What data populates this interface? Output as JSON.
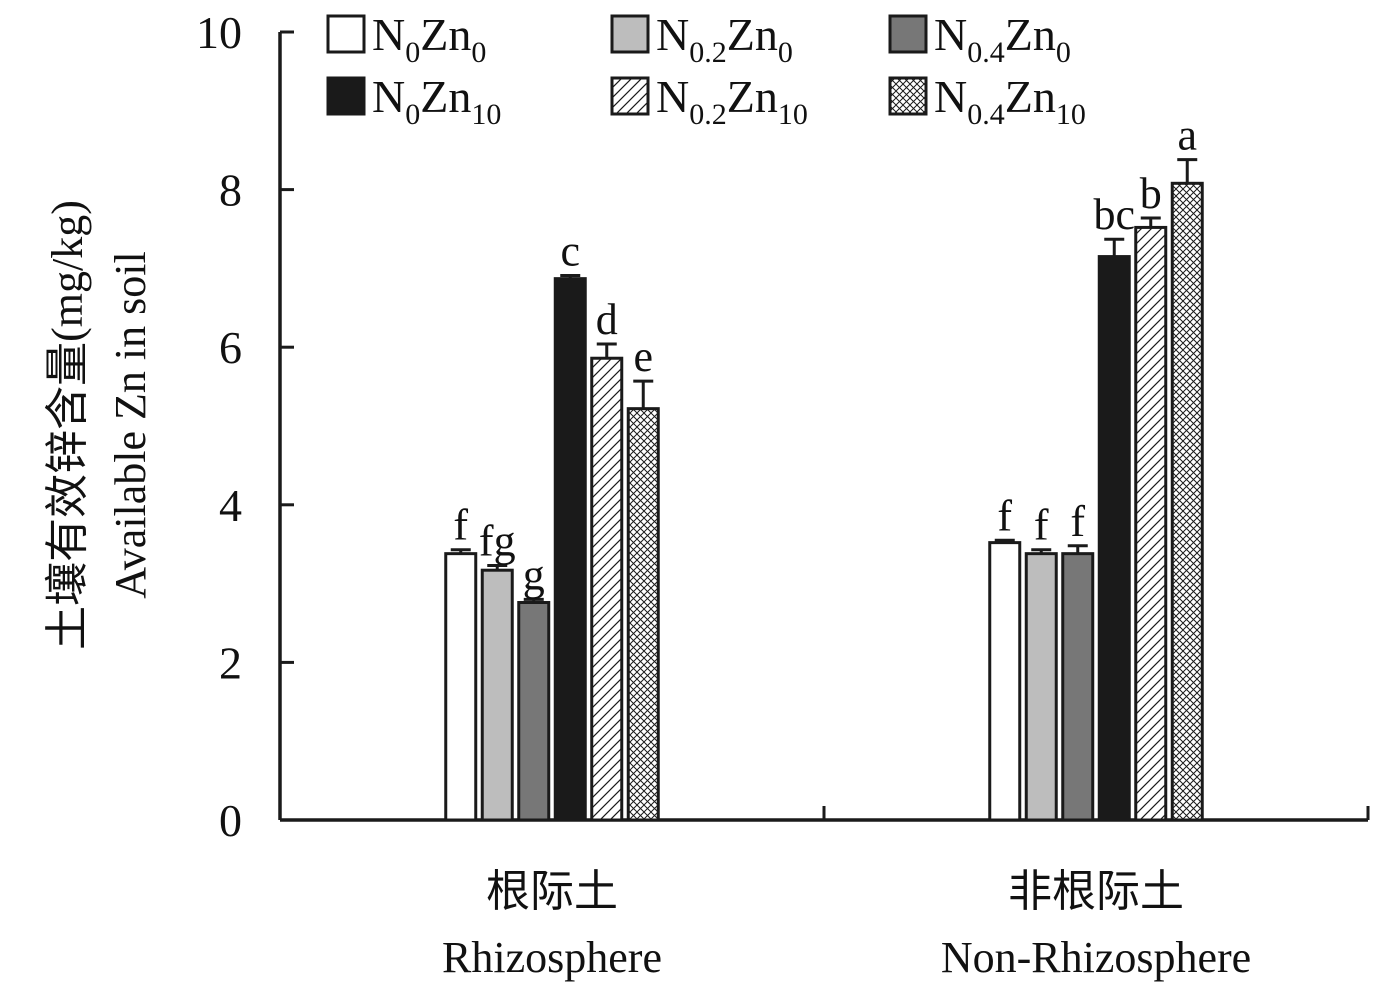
{
  "chart_data": {
    "type": "bar",
    "ylabel_cn": "土壤有效锌含量(mg/kg)",
    "ylabel_en": "Available Zn in soil",
    "ylim": [
      0,
      10
    ],
    "yticks": [
      0,
      2,
      4,
      6,
      8,
      10
    ],
    "ytick_labels": [
      "0",
      "2",
      "4",
      "6",
      "8",
      "10"
    ],
    "legend_position": "top",
    "categories": [
      {
        "cn": "根际土",
        "en": "Rhizosphere"
      },
      {
        "cn": "非根际土",
        "en": "Non-Rhizosphere"
      }
    ],
    "series": [
      {
        "name": "N0Zn0",
        "label_base": "N",
        "label_sub1": "0",
        "label_mid": "Zn",
        "label_sub2": "0",
        "style": "white",
        "values": [
          3.38,
          3.52
        ],
        "errors": [
          0.05,
          0.03
        ],
        "letters": [
          "f",
          "f"
        ]
      },
      {
        "name": "N0.2Zn0",
        "label_base": "N",
        "label_sub1": "0.2",
        "label_mid": "Zn",
        "label_sub2": "0",
        "style": "lightgray",
        "values": [
          3.17,
          3.38
        ],
        "errors": [
          0.06,
          0.05
        ],
        "letters": [
          "fg",
          "f"
        ]
      },
      {
        "name": "N0.4Zn0",
        "label_base": "N",
        "label_sub1": "0.4",
        "label_mid": "Zn",
        "label_sub2": "0",
        "style": "darkgray",
        "values": [
          2.76,
          3.38
        ],
        "errors": [
          0.04,
          0.1
        ],
        "letters": [
          "g",
          "f"
        ]
      },
      {
        "name": "N0Zn10",
        "label_base": "N",
        "label_sub1": "0",
        "label_mid": "Zn",
        "label_sub2": "10",
        "style": "black",
        "values": [
          6.87,
          7.15
        ],
        "errors": [
          0.04,
          0.22
        ],
        "letters": [
          "c",
          "bc"
        ]
      },
      {
        "name": "N0.2Zn10",
        "label_base": "N",
        "label_sub1": "0.2",
        "label_mid": "Zn",
        "label_sub2": "10",
        "style": "hatch",
        "values": [
          5.86,
          7.52
        ],
        "errors": [
          0.18,
          0.12
        ],
        "letters": [
          "d",
          "b"
        ]
      },
      {
        "name": "N0.4Zn10",
        "label_base": "N",
        "label_sub1": "0.4",
        "label_mid": "Zn",
        "label_sub2": "10",
        "style": "crosshatch",
        "values": [
          5.22,
          8.08
        ],
        "errors": [
          0.35,
          0.3
        ],
        "letters": [
          "e",
          "a"
        ]
      }
    ],
    "colors": {
      "white": "#ffffff",
      "lightgray": "#bdbdbd",
      "darkgray": "#777777",
      "black": "#1a1a1a",
      "outline": "#1a1a1a"
    }
  }
}
